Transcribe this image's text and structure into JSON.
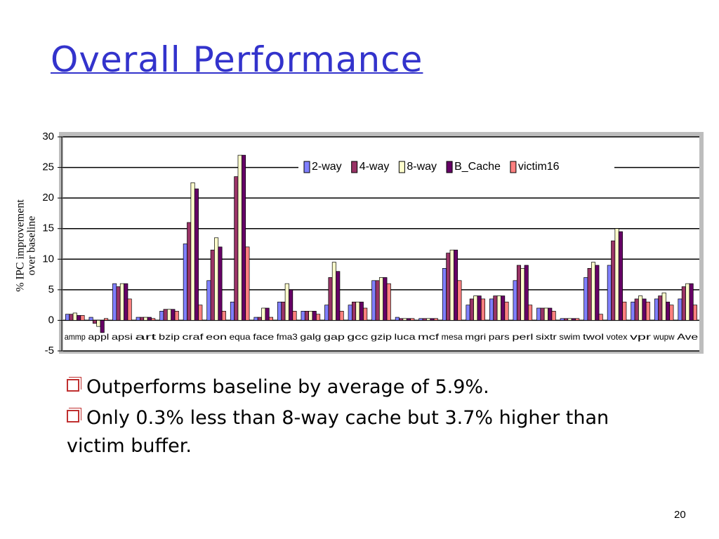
{
  "slide_title": "Overall Performance",
  "chart_data": {
    "type": "bar",
    "ylabel": [
      "% IPC improvement",
      "over baseline"
    ],
    "categories": [
      "ammp",
      "appl",
      "apsi",
      "art",
      "bzip",
      "craf",
      "eon",
      "equa",
      "face",
      "fma3",
      "galg",
      "gap",
      "gcc",
      "gzip",
      "luca",
      "mcf",
      "mesa",
      "mgri",
      "pars",
      "perl",
      "sixtr",
      "swim",
      "twol",
      "votex",
      "vpr",
      "wupw",
      "Ave"
    ],
    "series": [
      {
        "name": "2-way",
        "color": "#8080ff",
        "values": [
          1,
          0.5,
          6,
          0.5,
          1.5,
          12.5,
          6.5,
          3,
          0.5,
          3,
          1.5,
          2.5,
          2.5,
          6.5,
          0.5,
          0.3,
          8.5,
          2.5,
          3.5,
          6.5,
          2,
          0.3,
          7,
          9,
          3,
          3.5,
          3.5
        ]
      },
      {
        "name": "4-way",
        "color": "#993366",
        "values": [
          1,
          -0.5,
          5.5,
          0.5,
          1.8,
          16,
          11.5,
          23.5,
          0.5,
          3,
          1.5,
          7,
          3,
          6.5,
          0.3,
          0.3,
          11,
          3.5,
          4,
          9,
          2,
          0.3,
          8.5,
          13,
          3.5,
          4,
          5.5
        ]
      },
      {
        "name": "8-way",
        "color": "#ffffcc",
        "values": [
          1.2,
          -1,
          6,
          0.5,
          1.8,
          22.5,
          13.5,
          27,
          2,
          6,
          1.5,
          9.5,
          3,
          7,
          0.3,
          0.3,
          11.5,
          4,
          4,
          8.5,
          2,
          0.3,
          9.5,
          15,
          4,
          4.5,
          6
        ]
      },
      {
        "name": "B_Cache",
        "color": "#660066",
        "values": [
          0.8,
          -2,
          6,
          0.5,
          1.8,
          21.5,
          12,
          27,
          2,
          5,
          1.5,
          8,
          3,
          7,
          0.3,
          0.3,
          11.5,
          4,
          4,
          9,
          2,
          0.3,
          9,
          14.5,
          3.5,
          3,
          6
        ]
      },
      {
        "name": "victim16",
        "color": "#ff8080",
        "values": [
          0.8,
          0.3,
          3.5,
          0.3,
          1.5,
          2.5,
          1.5,
          12,
          0.5,
          1.5,
          1,
          1.5,
          2,
          6,
          0.3,
          0.3,
          6.5,
          3.5,
          3,
          2.5,
          1.5,
          0.3,
          1,
          3,
          3,
          2.5,
          2.5
        ]
      }
    ],
    "ylim": [
      -5,
      30
    ],
    "yticks": [
      30,
      25,
      20,
      15,
      10,
      5,
      0,
      -5
    ],
    "grid": true,
    "legend": "top"
  },
  "bullets": [
    "Outperforms baseline by average of 5.9%.",
    "Only 0.3% less than 8-way cache but 3.7% higher than victim buffer."
  ],
  "page_number": "20"
}
